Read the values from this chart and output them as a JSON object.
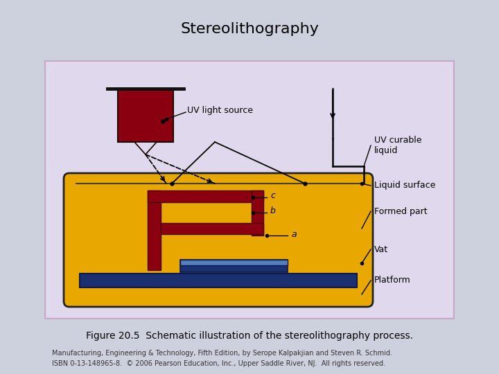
{
  "title": "Stereolithography",
  "title_fontsize": 16,
  "caption": "Figure 20.5  Schematic illustration of the stereolithography process.",
  "caption_fontsize": 10,
  "footer_line1": "Manufacturing, Engineering & Technology, Fifth Edition, by Serope Kalpakjian and Steven R. Schmid.",
  "footer_line2": "ISBN 0-13-148965-8.  © 2006 Pearson Education, Inc., Upper Saddle River, NJ.  All rights reserved.",
  "footer_fontsize": 7,
  "bg_color": "#cdd1de",
  "panel_bg_top": "#dcd5e5",
  "panel_bg_bottom": "#e8e4ee",
  "panel_border": "#c8a8c8",
  "vat_fill": "#e8a800",
  "vat_border": "#222222",
  "uv_source_fill": "#8b0010",
  "platform_fill_dark": "#1a3070",
  "platform_fill_mid": "#3060a8",
  "platform_fill_light": "#5080c0",
  "formed_part_color": "#8b0010",
  "label_color": "#000000"
}
